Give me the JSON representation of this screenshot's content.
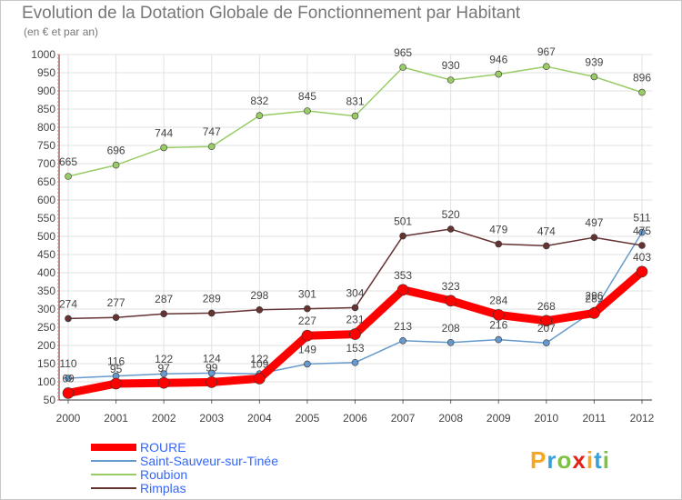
{
  "header": {
    "title": "Evolution de la Dotation Globale de Fonctionnement par Habitant",
    "subtitle": "(en € et par an)"
  },
  "logo": {
    "text": "Proxiti",
    "colors": [
      "#f5a623",
      "#3aa0d8",
      "#7dc242",
      "#e2231a",
      "#f5a623",
      "#3aa0d8",
      "#7dc242"
    ]
  },
  "chart_data": {
    "type": "line",
    "title": "Evolution de la Dotation Globale de Fonctionnement par Habitant",
    "subtitle": "(en € et par an)",
    "xlabel": "",
    "ylabel": "",
    "ylim": [
      50,
      1000
    ],
    "yticks": [
      50,
      100,
      150,
      200,
      250,
      300,
      350,
      400,
      450,
      500,
      550,
      600,
      650,
      700,
      750,
      800,
      850,
      900,
      950,
      1000
    ],
    "grid": true,
    "legend_position": "bottom-left",
    "categories": [
      "2000",
      "2001",
      "2002",
      "2003",
      "2004",
      "2005",
      "2006",
      "2007",
      "2008",
      "2009",
      "2010",
      "2011",
      "2012"
    ],
    "series": [
      {
        "name": "ROURE",
        "color": "#ff0000",
        "values": [
          69,
          95,
          97,
          99,
          109,
          227,
          231,
          353,
          323,
          284,
          268,
          289,
          403
        ]
      },
      {
        "name": "Saint-Sauveur-sur-Tinée",
        "color": "#6699cc",
        "values": [
          110,
          116,
          122,
          124,
          122,
          149,
          153,
          213,
          208,
          216,
          207,
          296,
          511
        ]
      },
      {
        "name": "Roubion",
        "color": "#99cc66",
        "values": [
          665,
          696,
          744,
          747,
          832,
          845,
          831,
          965,
          930,
          946,
          967,
          939,
          896
        ]
      },
      {
        "name": "Rimplas",
        "color": "#663333",
        "values": [
          274,
          277,
          287,
          289,
          298,
          301,
          304,
          501,
          520,
          479,
          474,
          497,
          475
        ]
      }
    ]
  }
}
